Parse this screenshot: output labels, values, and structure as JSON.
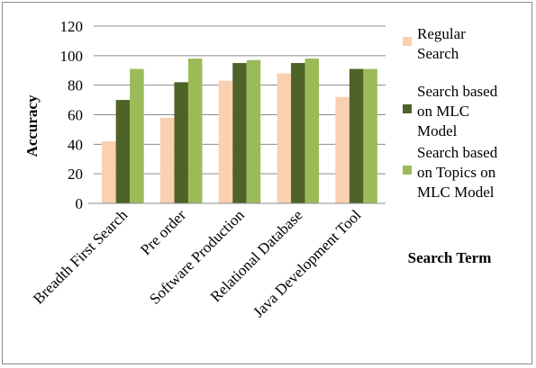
{
  "chart_data": {
    "type": "bar",
    "categories": [
      "Breadth First Search",
      "Pre order",
      "Software Production",
      "Relational Database",
      "Java Development Tool"
    ],
    "series": [
      {
        "name": "Regular Search",
        "name_lines": [
          "Regular",
          "Search"
        ],
        "color": "#fad0b0",
        "values": [
          42,
          58,
          83,
          88,
          72
        ]
      },
      {
        "name": "Search based on MLC Model",
        "name_lines": [
          "Search based",
          "on MLC",
          "Model"
        ],
        "color": "#4f6228",
        "values": [
          70,
          82,
          95,
          95,
          91
        ]
      },
      {
        "name": "Search based on Topics on MLC Model",
        "name_lines": [
          "Search based",
          "on Topics on",
          "MLC Model"
        ],
        "color": "#9bbb59",
        "values": [
          91,
          98,
          97,
          98,
          91
        ]
      }
    ],
    "title": "",
    "xlabel": "Search Term",
    "ylabel": "Accuracy",
    "ylim": [
      0,
      120
    ],
    "yticks": [
      0,
      20,
      40,
      60,
      80,
      100,
      120
    ],
    "grid": true,
    "legend_position": "right"
  }
}
